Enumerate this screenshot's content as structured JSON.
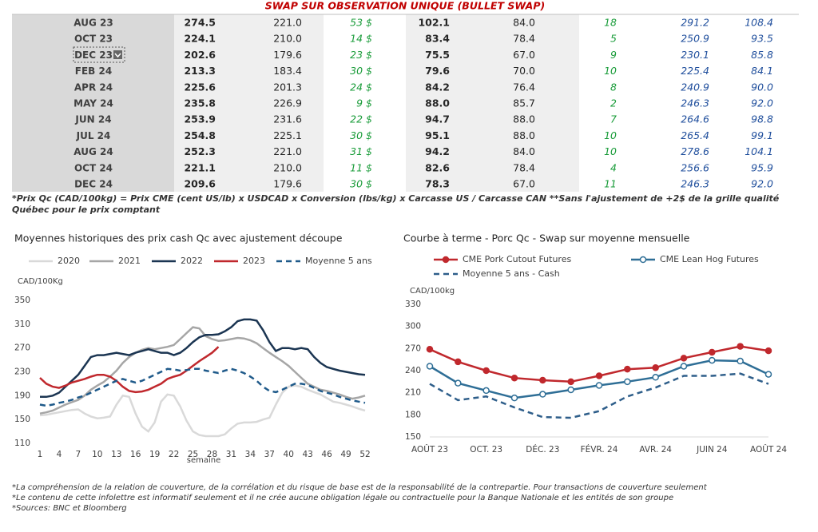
{
  "header": {
    "title": "SWAP SUR OBSERVATION UNIQUE (BULLET SWAP)"
  },
  "table": {
    "rows": [
      [
        "AUG 23",
        "274.5",
        "221.0",
        "53 $",
        "102.1",
        "84.0",
        "18",
        "291.2",
        "108.4"
      ],
      [
        "OCT 23",
        "224.1",
        "210.0",
        "14 $",
        "83.4",
        "78.4",
        "5",
        "250.9",
        "93.5"
      ],
      [
        "DEC 23",
        "202.6",
        "179.6",
        "23 $",
        "75.5",
        "67.0",
        "9",
        "230.1",
        "85.8"
      ],
      [
        "FEB 24",
        "213.3",
        "183.4",
        "30 $",
        "79.6",
        "70.0",
        "10",
        "225.4",
        "84.1"
      ],
      [
        "APR 24",
        "225.6",
        "201.3",
        "24 $",
        "84.2",
        "76.4",
        "8",
        "240.9",
        "90.0"
      ],
      [
        "MAY 24",
        "235.8",
        "226.9",
        "9 $",
        "88.0",
        "85.7",
        "2",
        "246.3",
        "92.0"
      ],
      [
        "JUN 24",
        "253.9",
        "231.6",
        "22 $",
        "94.7",
        "88.0",
        "7",
        "264.6",
        "98.8"
      ],
      [
        "JUL 24",
        "254.8",
        "225.1",
        "30 $",
        "95.1",
        "88.0",
        "10",
        "265.4",
        "99.1"
      ],
      [
        "AUG 24",
        "252.3",
        "221.0",
        "31 $",
        "94.2",
        "84.0",
        "10",
        "278.6",
        "104.1"
      ],
      [
        "OCT 24",
        "221.1",
        "210.0",
        "11 $",
        "82.6",
        "78.4",
        "4",
        "256.6",
        "95.9"
      ],
      [
        "DEC 24",
        "209.6",
        "179.6",
        "30 $",
        "78.3",
        "67.0",
        "11",
        "246.3",
        "92.0"
      ]
    ]
  },
  "footnote": "*Prix Qc (CAD/100kg) = Prix CME (cent US/lb) x USDCAD x Conversion (lbs/kg) x Carcasse US / Carcasse CAN **Sans l'ajustement de +2$ de la grille qualité Québec pour le prix comptant",
  "chart_data": [
    {
      "type": "line",
      "title": "Moyennes historiques des prix cash Qc avec ajustement découpe",
      "y_label": "CAD/100Kg",
      "x_label": "semaine",
      "x": [
        1,
        2,
        3,
        4,
        5,
        6,
        7,
        8,
        9,
        10,
        11,
        12,
        13,
        14,
        15,
        16,
        17,
        18,
        19,
        20,
        21,
        22,
        23,
        24,
        25,
        26,
        27,
        28,
        29,
        30,
        31,
        32,
        33,
        34,
        35,
        36,
        37,
        38,
        39,
        40,
        41,
        42,
        43,
        44,
        45,
        46,
        47,
        48,
        49,
        50,
        51,
        52
      ],
      "xlim": [
        1,
        52
      ],
      "xticks": [
        1,
        4,
        7,
        10,
        13,
        16,
        19,
        22,
        25,
        28,
        31,
        34,
        37,
        40,
        43,
        46,
        49,
        52
      ],
      "ylim": [
        110,
        350
      ],
      "yticks": [
        110,
        150,
        190,
        230,
        270,
        310,
        350
      ],
      "series": [
        {
          "name": "2020",
          "color": "#d9d9d9",
          "dashed": false,
          "values": [
            157,
            158,
            160,
            162,
            164,
            166,
            167,
            160,
            155,
            152,
            153,
            155,
            175,
            190,
            188,
            160,
            138,
            130,
            145,
            180,
            192,
            190,
            172,
            148,
            130,
            124,
            122,
            122,
            122,
            125,
            135,
            143,
            145,
            145,
            146,
            150,
            153,
            175,
            195,
            205,
            207,
            205,
            200,
            196,
            192,
            186,
            180,
            178,
            175,
            172,
            168,
            165
          ]
        },
        {
          "name": "2021",
          "color": "#a6a6a6",
          "dashed": false,
          "values": [
            160,
            162,
            165,
            170,
            175,
            179,
            183,
            190,
            200,
            207,
            213,
            222,
            232,
            245,
            255,
            262,
            267,
            270,
            268,
            270,
            272,
            275,
            285,
            295,
            305,
            303,
            290,
            285,
            282,
            283,
            285,
            287,
            286,
            283,
            278,
            270,
            262,
            255,
            248,
            240,
            230,
            220,
            210,
            205,
            200,
            198,
            195,
            192,
            188,
            185,
            187,
            190
          ]
        },
        {
          "name": "2022",
          "color": "#1b3552",
          "dashed": false,
          "values": [
            188,
            188,
            190,
            195,
            205,
            215,
            225,
            240,
            255,
            258,
            258,
            260,
            262,
            260,
            258,
            262,
            265,
            268,
            265,
            262,
            262,
            258,
            262,
            270,
            280,
            288,
            292,
            292,
            293,
            298,
            305,
            315,
            318,
            318,
            316,
            300,
            280,
            265,
            270,
            270,
            268,
            270,
            268,
            255,
            245,
            238,
            235,
            232,
            230,
            228,
            226,
            225
          ]
        },
        {
          "name": "2023",
          "color": "#c0282d",
          "dashed": false,
          "values": [
            220,
            210,
            205,
            203,
            207,
            212,
            215,
            218,
            222,
            225,
            225,
            222,
            215,
            205,
            198,
            196,
            197,
            200,
            205,
            210,
            218,
            222,
            225,
            232,
            240,
            248,
            255,
            262,
            272,
            null,
            null,
            null,
            null,
            null,
            null,
            null,
            null,
            null,
            null,
            null,
            null,
            null,
            null,
            null,
            null,
            null,
            null,
            null,
            null,
            null,
            null,
            null
          ]
        },
        {
          "name": "Moyenne 5 ans",
          "color": "#1f5a8a",
          "dashed": true,
          "values": [
            175,
            173,
            175,
            178,
            180,
            183,
            187,
            190,
            195,
            200,
            205,
            210,
            215,
            218,
            215,
            212,
            215,
            220,
            225,
            230,
            235,
            234,
            232,
            233,
            235,
            235,
            232,
            230,
            228,
            232,
            235,
            232,
            228,
            222,
            215,
            205,
            198,
            196,
            200,
            205,
            210,
            210,
            208,
            203,
            198,
            195,
            192,
            188,
            185,
            182,
            180,
            178
          ]
        }
      ]
    },
    {
      "type": "line",
      "title": "Courbe à terme - Porc Qc - Swap sur moyenne mensuelle",
      "y_label": "CAD/100kg",
      "categories": [
        "AOÛT 23",
        null,
        "OCT. 23",
        null,
        "DÉC. 23",
        null,
        "FÉVR. 24",
        null,
        "AVR. 24",
        null,
        "JUIN 24",
        null,
        "AOÛT 24"
      ],
      "ylim": [
        150,
        330
      ],
      "yticks": [
        150,
        180,
        210,
        240,
        270,
        300,
        330
      ],
      "series": [
        {
          "name": "CME Pork Cutout Futures",
          "color": "#c0282d",
          "marker_fill": "#c0282d",
          "dashed": false,
          "values": [
            269,
            252,
            240,
            230,
            227,
            225,
            233,
            242,
            244,
            257,
            265,
            273,
            267
          ]
        },
        {
          "name": "CME Lean Hog Futures",
          "color": "#2e6e96",
          "marker_fill": "#ffffff",
          "dashed": false,
          "values": [
            246,
            223,
            213,
            203,
            208,
            214,
            220,
            225,
            231,
            246,
            254,
            253,
            235
          ]
        },
        {
          "name": "Moyenne 5 ans - Cash",
          "color": "#2e5e8a",
          "marker_fill": null,
          "dashed": true,
          "values": [
            222,
            200,
            205,
            190,
            177,
            176,
            185,
            205,
            217,
            233,
            233,
            236,
            222
          ]
        }
      ]
    }
  ],
  "notes": [
    "*La compréhension de la relation de couverture, de la corrélation et du risque de base est de la responsabilité de la contrepartie. Pour transactions de couverture seulement",
    "*Le contenu de cette infolettre est informatif seulement et il ne crée aucune obligation légale ou contractuelle pour la Banque Nationale et les entités de son groupe",
    "*Sources: BNC et Bloomberg"
  ]
}
